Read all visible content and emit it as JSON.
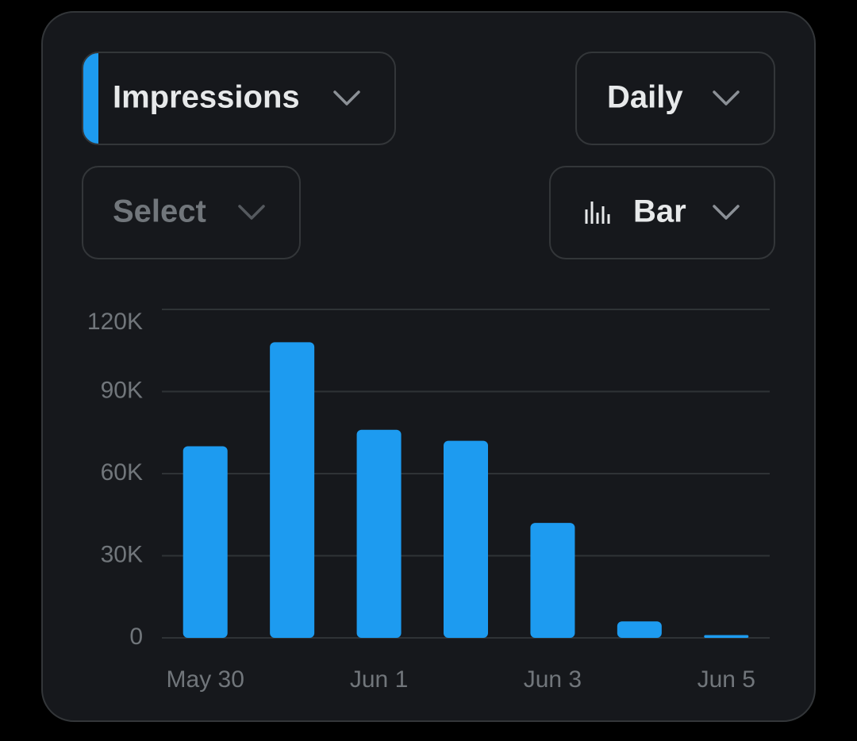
{
  "controls": {
    "metric": "Impressions",
    "interval": "Daily",
    "compare": "Select",
    "chart_style": "Bar"
  },
  "chart_data": {
    "type": "bar",
    "categories": [
      "May 30",
      null,
      "Jun 1",
      null,
      "Jun 3",
      null,
      "Jun 5"
    ],
    "values": [
      70000,
      108000,
      76000,
      72000,
      42000,
      6000,
      1000
    ],
    "color": "#1d9bf0",
    "ylim": [
      0,
      120000
    ],
    "yticks": [
      0,
      {
        "value": 30000,
        "label": "30K"
      },
      {
        "value": 60000,
        "label": "60K"
      },
      {
        "value": 90000,
        "label": "90K"
      },
      {
        "value": 120000,
        "label": "120K"
      }
    ],
    "grid": true
  }
}
